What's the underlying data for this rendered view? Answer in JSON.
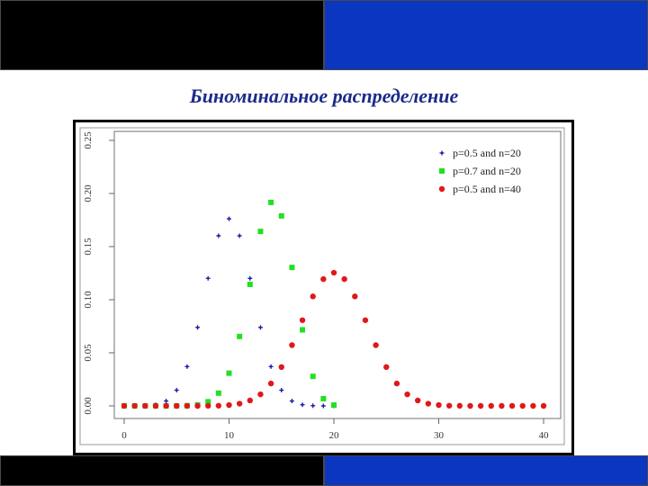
{
  "slide": {
    "title": "Биноминальное распределение",
    "colors": {
      "band_dark": "#000000",
      "band_blue": "#0a36c0",
      "title": "#1a2a8a"
    }
  },
  "chart_data": {
    "type": "scatter",
    "title": "",
    "xlabel": "",
    "ylabel": "",
    "xlim": [
      0,
      40
    ],
    "ylim": [
      0,
      0.25
    ],
    "x_ticks": [
      "0",
      "10",
      "20",
      "30",
      "40"
    ],
    "y_ticks": [
      "0.00",
      "0.05",
      "0.10",
      "0.15",
      "0.20",
      "0.25"
    ],
    "grid": false,
    "legend_position": "top-right",
    "series": [
      {
        "name": "p=0.5 and n=20",
        "color": "#1a1aa8",
        "marker": "star",
        "x": [
          0,
          1,
          2,
          3,
          4,
          5,
          6,
          7,
          8,
          9,
          10,
          11,
          12,
          13,
          14,
          15,
          16,
          17,
          18,
          19,
          20
        ],
        "y": [
          0.0,
          0.0,
          0.0002,
          0.0011,
          0.0046,
          0.0148,
          0.037,
          0.0739,
          0.1201,
          0.1602,
          0.1762,
          0.1602,
          0.1201,
          0.0739,
          0.037,
          0.0148,
          0.0046,
          0.0011,
          0.0002,
          0.0,
          0.0
        ]
      },
      {
        "name": "p=0.7 and n=20",
        "color": "#22e022",
        "marker": "square",
        "x": [
          0,
          1,
          2,
          3,
          4,
          5,
          6,
          7,
          8,
          9,
          10,
          11,
          12,
          13,
          14,
          15,
          16,
          17,
          18,
          19,
          20
        ],
        "y": [
          0.0,
          0.0,
          0.0,
          0.0,
          0.0,
          0.0,
          0.0002,
          0.001,
          0.0039,
          0.012,
          0.0308,
          0.0654,
          0.1144,
          0.1643,
          0.1916,
          0.1789,
          0.1304,
          0.0716,
          0.0278,
          0.0068,
          0.0008
        ]
      },
      {
        "name": "p=0.5 and n=40",
        "color": "#e01818",
        "marker": "circle",
        "x": [
          0,
          1,
          2,
          3,
          4,
          5,
          6,
          7,
          8,
          9,
          10,
          11,
          12,
          13,
          14,
          15,
          16,
          17,
          18,
          19,
          20,
          21,
          22,
          23,
          24,
          25,
          26,
          27,
          28,
          29,
          30,
          31,
          32,
          33,
          34,
          35,
          36,
          37,
          38,
          39,
          40
        ],
        "y": [
          0.0,
          0.0,
          0.0,
          0.0,
          0.0,
          0.0,
          0.0,
          0.0,
          0.0001,
          0.0002,
          0.0008,
          0.0021,
          0.0051,
          0.0109,
          0.0211,
          0.0366,
          0.0572,
          0.0807,
          0.1031,
          0.1194,
          0.1254,
          0.1194,
          0.1031,
          0.0807,
          0.0572,
          0.0366,
          0.0211,
          0.0109,
          0.0051,
          0.0021,
          0.0008,
          0.0002,
          0.0001,
          0.0,
          0.0,
          0.0,
          0.0,
          0.0,
          0.0,
          0.0,
          0.0
        ]
      }
    ]
  }
}
